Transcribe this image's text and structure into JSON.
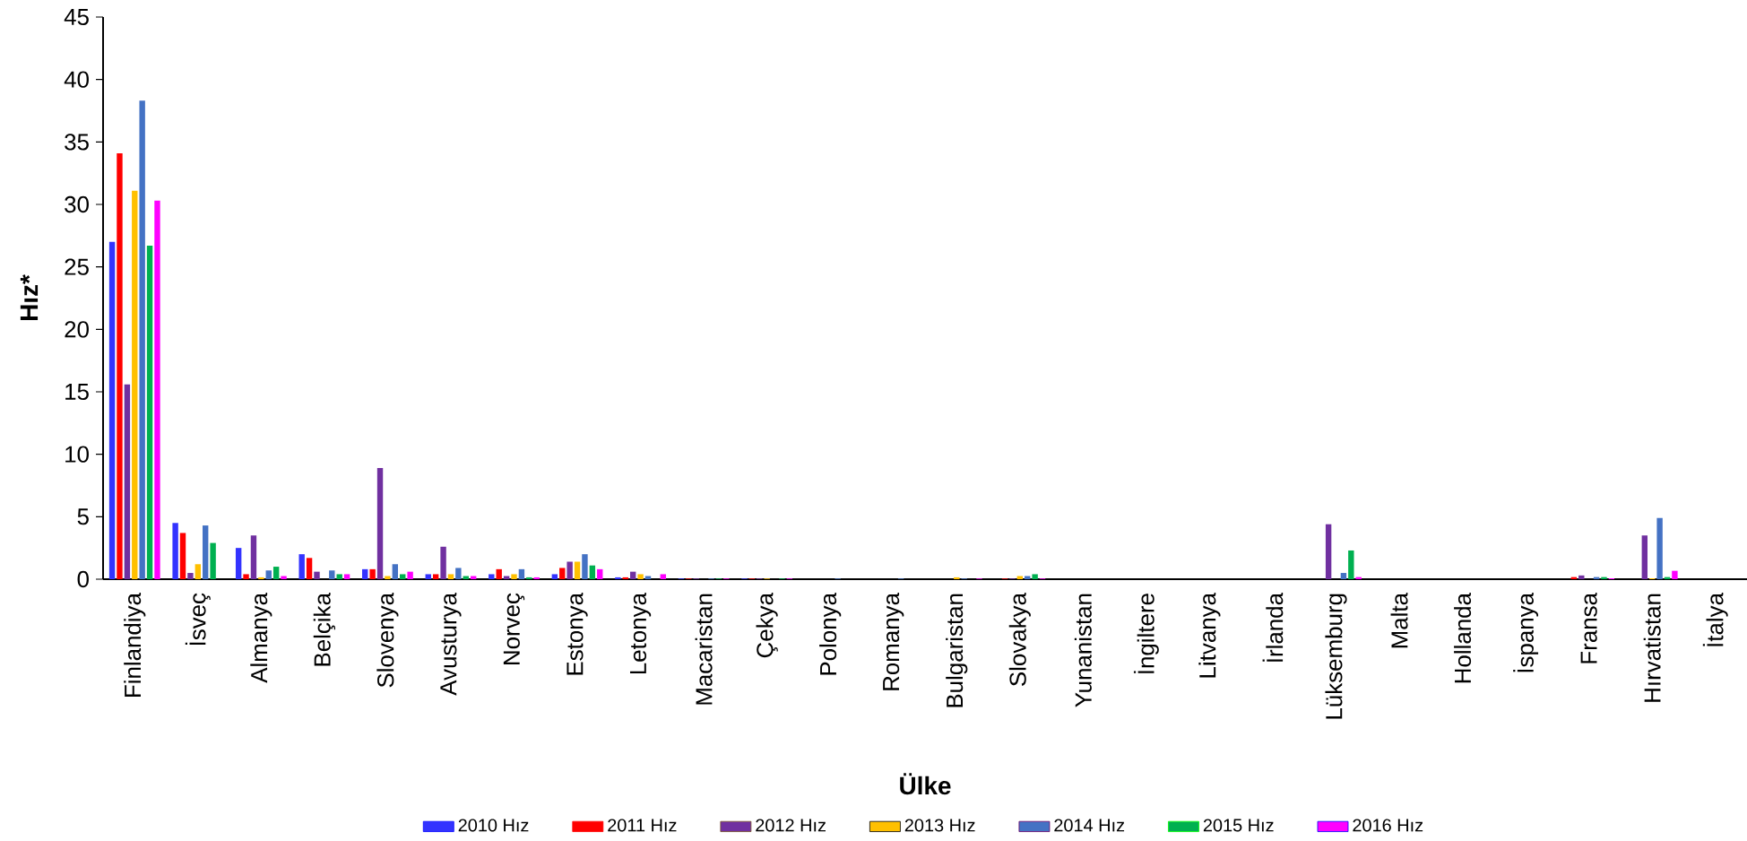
{
  "chart_data": {
    "type": "bar",
    "xlabel": "Ülke",
    "ylabel": "Hız*",
    "categories": [
      "Finlandiya",
      "İsveç",
      "Almanya",
      "Belçika",
      "Slovenya",
      "Avusturya",
      "Norveç",
      "Estonya",
      "Letonya",
      "Macaristan",
      "Çekya",
      "Polonya",
      "Romanya",
      "Bulgaristan",
      "Slovakya",
      "Yunanistan",
      "İngiltere",
      "Litvanya",
      "İrlanda",
      "Lüksemburg",
      "Malta",
      "Hollanda",
      "İspanya",
      "Fransa",
      "Hırvatistan",
      "İtalya"
    ],
    "series": [
      {
        "name": "2010 Hız",
        "color": "#3333ff",
        "values": [
          27.0,
          4.5,
          2.5,
          2.0,
          0.8,
          0.4,
          0.4,
          0.4,
          0.15,
          0.05,
          0.05,
          null,
          null,
          null,
          null,
          null,
          null,
          null,
          null,
          null,
          null,
          null,
          null,
          null,
          null,
          null
        ]
      },
      {
        "name": "2011 Hız",
        "color": "#ff0000",
        "values": [
          34.1,
          3.7,
          0.4,
          1.7,
          0.8,
          0.4,
          0.8,
          0.9,
          0.15,
          0.05,
          0.05,
          null,
          null,
          null,
          0.05,
          null,
          null,
          null,
          null,
          null,
          null,
          null,
          null,
          0.17,
          null,
          null
        ]
      },
      {
        "name": "2012 Hız",
        "color": "#7030a0",
        "values": [
          15.6,
          0.5,
          3.5,
          0.6,
          8.9,
          2.6,
          0.25,
          1.4,
          0.6,
          0.05,
          0.05,
          null,
          null,
          null,
          0.05,
          null,
          null,
          null,
          null,
          4.4,
          null,
          null,
          null,
          0.3,
          3.5,
          null
        ]
      },
      {
        "name": "2013 Hız",
        "color": "#ffc000",
        "values": [
          31.1,
          1.2,
          0.15,
          null,
          0.25,
          0.4,
          0.4,
          1.4,
          0.4,
          null,
          0.05,
          null,
          null,
          0.15,
          0.25,
          null,
          null,
          null,
          null,
          null,
          null,
          null,
          null,
          null,
          0.07,
          null
        ]
      },
      {
        "name": "2014 Hız",
        "color": "#4472c4",
        "values": [
          38.3,
          4.3,
          0.7,
          0.7,
          1.2,
          0.9,
          0.8,
          2.0,
          0.25,
          0.05,
          null,
          0.05,
          0.05,
          0.05,
          0.25,
          null,
          null,
          null,
          null,
          0.5,
          null,
          null,
          null,
          0.17,
          4.9,
          null
        ]
      },
      {
        "name": "2015 Hız",
        "color": "#00b050",
        "values": [
          26.7,
          2.9,
          1.0,
          0.4,
          0.4,
          0.25,
          0.15,
          1.1,
          null,
          0.05,
          0.05,
          null,
          null,
          null,
          0.4,
          null,
          null,
          null,
          null,
          2.3,
          null,
          null,
          null,
          0.17,
          0.17,
          null
        ]
      },
      {
        "name": "2016 Hız",
        "color": "#ff00ff",
        "values": [
          30.3,
          null,
          0.25,
          0.4,
          0.6,
          0.25,
          0.15,
          0.8,
          0.4,
          0.05,
          0.05,
          null,
          null,
          0.05,
          0.05,
          null,
          null,
          null,
          null,
          0.17,
          null,
          null,
          null,
          0.07,
          0.67,
          null
        ]
      }
    ],
    "ylim": [
      0,
      45
    ],
    "yticks": [
      0,
      5,
      10,
      15,
      20,
      25,
      30,
      35,
      40,
      45
    ],
    "legend": "bottom"
  }
}
